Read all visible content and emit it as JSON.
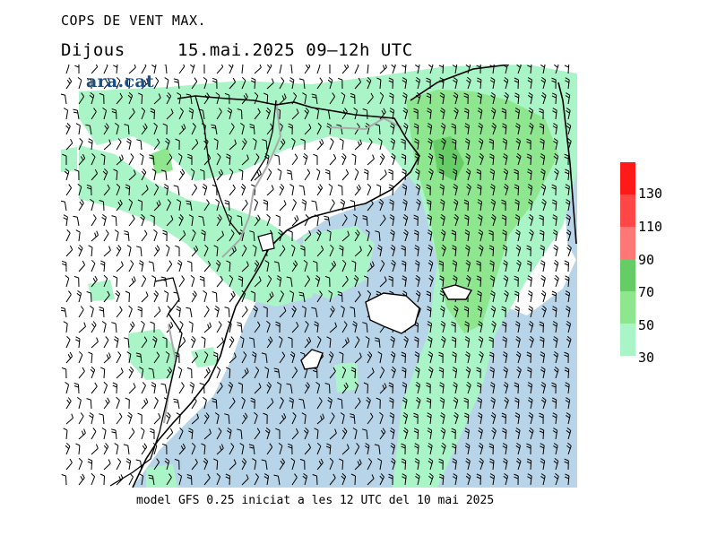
{
  "header": {
    "title": "COPS DE VENT MAX.",
    "day": "Dijous",
    "datetime": "15.mai.2025 09‒12h UTC"
  },
  "brand": {
    "text": "ara.cat",
    "color": "#1a4f8a"
  },
  "footer": {
    "model_info": "model GFS 0.25 iniciat a les 12 UTC del 10 mai 2025"
  },
  "legend": {
    "bins": [
      {
        "from": 130,
        "to": 150,
        "color": "#ff1a1a"
      },
      {
        "from": 110,
        "to": 130,
        "color": "#ff4747"
      },
      {
        "from": 90,
        "to": 110,
        "color": "#ff7878"
      },
      {
        "from": 70,
        "to": 90,
        "color": "#66cc66"
      },
      {
        "from": 50,
        "to": 70,
        "color": "#8ee68e"
      },
      {
        "from": 30,
        "to": 50,
        "color": "#aaf5c8"
      }
    ],
    "labels": [
      "130",
      "110",
      "90",
      "70",
      "50",
      "30"
    ]
  },
  "colors": {
    "sea": "#b8d4e8",
    "land": "#ffffff",
    "gust_30_50": "#aaf5c8",
    "gust_50_70": "#8ee68e",
    "gust_70_90": "#66cc66",
    "coastline": "#000000",
    "border": "#aaaaaa"
  }
}
